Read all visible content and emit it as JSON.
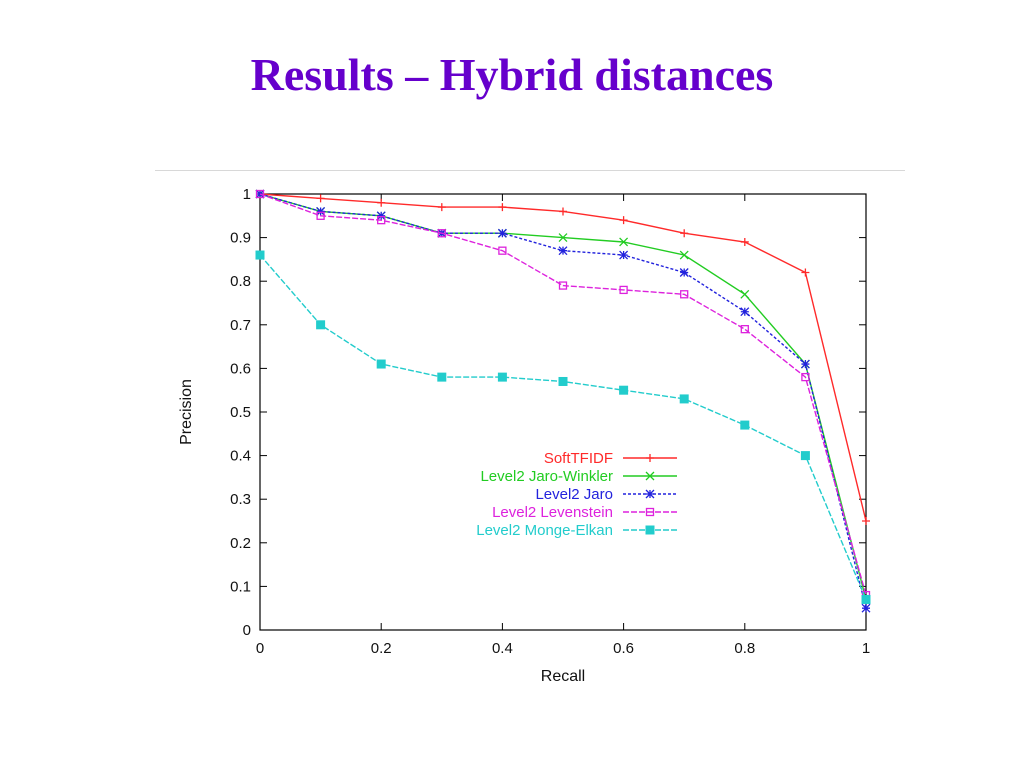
{
  "slide": {
    "title": "Results – Hybrid distances"
  },
  "chart_data": {
    "type": "line",
    "title": "",
    "xlabel": "Recall",
    "ylabel": "Precision",
    "xlim": [
      0,
      1
    ],
    "ylim": [
      0,
      1
    ],
    "xticks": [
      "0",
      "0.2",
      "0.4",
      "0.6",
      "0.8",
      "1"
    ],
    "yticks": [
      "0",
      "0.1",
      "0.2",
      "0.3",
      "0.4",
      "0.5",
      "0.6",
      "0.7",
      "0.8",
      "0.9",
      "1"
    ],
    "grid": false,
    "legend_position": "center-right",
    "x": [
      0,
      0.1,
      0.2,
      0.3,
      0.4,
      0.5,
      0.6,
      0.7,
      0.8,
      0.9,
      1.0
    ],
    "series": [
      {
        "name": "SoftTFIDF",
        "color": "#ff2a2a",
        "marker": "plus",
        "values": [
          1.0,
          0.99,
          0.98,
          0.97,
          0.97,
          0.96,
          0.94,
          0.91,
          0.89,
          0.82,
          0.25
        ]
      },
      {
        "name": "Level2 Jaro-Winkler",
        "color": "#22cc22",
        "marker": "cross",
        "values": [
          1.0,
          0.96,
          0.95,
          0.91,
          0.91,
          0.9,
          0.89,
          0.86,
          0.77,
          0.61,
          0.07
        ]
      },
      {
        "name": "Level2 Jaro",
        "color": "#2222dd",
        "marker": "star",
        "values": [
          1.0,
          0.96,
          0.95,
          0.91,
          0.91,
          0.87,
          0.86,
          0.82,
          0.73,
          0.61,
          0.05
        ]
      },
      {
        "name": "Level2 Levenstein",
        "color": "#dd22dd",
        "marker": "square",
        "values": [
          1.0,
          0.95,
          0.94,
          0.91,
          0.87,
          0.79,
          0.78,
          0.77,
          0.69,
          0.58,
          0.08
        ]
      },
      {
        "name": "Level2 Monge-Elkan",
        "color": "#22cccc",
        "marker": "filled-square",
        "values": [
          0.86,
          0.7,
          0.61,
          0.58,
          0.58,
          0.57,
          0.55,
          0.53,
          0.47,
          0.4,
          0.07
        ]
      }
    ]
  }
}
